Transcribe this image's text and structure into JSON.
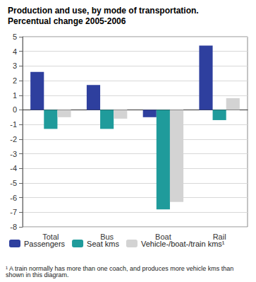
{
  "chart_data": {
    "type": "bar",
    "title": "Production and use, by mode of transportation.",
    "subtitle": "Percentual change 2005-2006",
    "categories": [
      "Total",
      "Bus",
      "Boat",
      "Rail"
    ],
    "series": [
      {
        "name": "Passengers",
        "color": "#2e3f9e",
        "values": [
          2.6,
          1.7,
          -0.5,
          4.4
        ]
      },
      {
        "name": "Seat kms",
        "color": "#1f9b9b",
        "values": [
          -1.3,
          -1.3,
          -6.8,
          -0.7
        ]
      },
      {
        "name": "Vehicle-/boat-/train kms¹",
        "color": "#d3d3d3",
        "values": [
          -0.5,
          -0.6,
          -6.3,
          0.8
        ]
      }
    ],
    "ylim": [
      -8,
      5
    ],
    "yticks": [
      -8,
      -7,
      -6,
      -5,
      -4,
      -3,
      -2,
      -1,
      0,
      1,
      2,
      3,
      4,
      5
    ],
    "grid": true,
    "legend": "bottom",
    "footnote": "¹ A train normally has more than one coach, and produces more vehicle kms than shown in this diagram."
  }
}
